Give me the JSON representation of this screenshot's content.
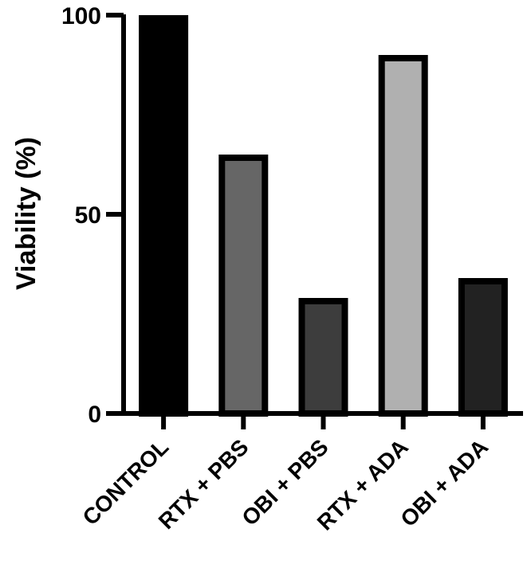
{
  "chart_data": {
    "type": "bar",
    "title": "",
    "xlabel": "",
    "ylabel": "Viability (%)",
    "ylim": [
      0,
      100
    ],
    "yticks": [
      0,
      50,
      100
    ],
    "categories": [
      "CONTROL",
      "RTX + PBS",
      "OBI + PBS",
      "RTX + ADA",
      "OBI + ADA"
    ],
    "values": [
      100,
      65,
      29,
      90,
      34
    ],
    "colors": [
      "#000000",
      "#666666",
      "#3d3d3d",
      "#b0b0b0",
      "#222222"
    ],
    "grid": false,
    "legend": "none"
  }
}
